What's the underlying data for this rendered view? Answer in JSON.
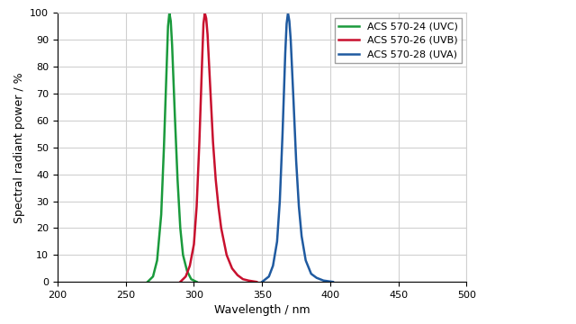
{
  "chart_data": {
    "type": "line",
    "x_label": "Wavelength / nm",
    "y_label": "Spectral radiant power / %",
    "xlim": [
      200,
      500
    ],
    "xticks": [
      200,
      250,
      300,
      350,
      400,
      450,
      500
    ],
    "ylim": [
      0,
      100
    ],
    "yticks": [
      0,
      10,
      20,
      30,
      40,
      50,
      60,
      70,
      80,
      90,
      100
    ],
    "grid": true,
    "legend": "upper right",
    "series": [
      {
        "name": "ACS 570-24 (UVC)",
        "color": "#1a9a3c",
        "x": [
          266,
          270,
          273,
          276,
          278,
          280,
          281,
          282,
          283,
          284,
          286,
          288,
          290,
          292,
          295,
          298,
          302
        ],
        "values": [
          0,
          2,
          8,
          25,
          50,
          80,
          95,
          100,
          97,
          88,
          62,
          38,
          20,
          10,
          4,
          1,
          0
        ]
      },
      {
        "name": "ACS 570-26 (UVB)",
        "color": "#c8102e",
        "x": [
          290,
          294,
          297,
          300,
          302,
          304,
          306,
          307,
          308,
          309,
          310,
          312,
          314,
          316,
          318,
          320,
          324,
          328,
          332,
          336,
          340,
          346
        ],
        "values": [
          0,
          2,
          6,
          14,
          28,
          52,
          82,
          96,
          100,
          98,
          92,
          72,
          52,
          38,
          28,
          20,
          10,
          5,
          2.5,
          1,
          0.5,
          0
        ]
      },
      {
        "name": "ACS 570-28 (UVA)",
        "color": "#1f5aa0",
        "x": [
          350,
          355,
          358,
          361,
          363,
          365,
          367,
          368,
          369,
          370,
          371,
          373,
          375,
          377,
          379,
          382,
          386,
          390,
          395,
          402
        ],
        "values": [
          0,
          2,
          6,
          15,
          30,
          55,
          85,
          96,
          100,
          97,
          90,
          68,
          45,
          28,
          17,
          8,
          3,
          1.5,
          0.5,
          0
        ]
      }
    ]
  }
}
